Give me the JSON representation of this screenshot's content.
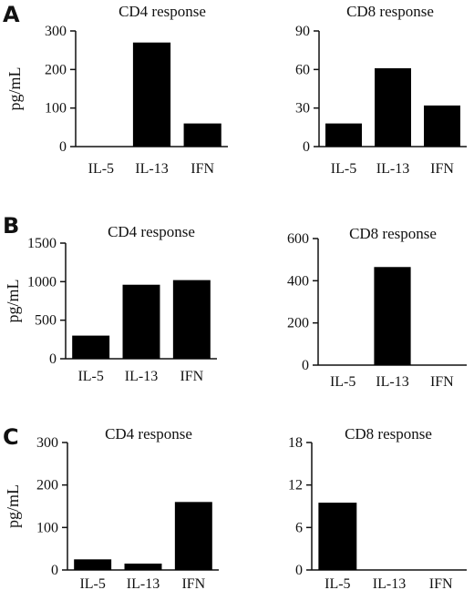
{
  "panels": [
    "A",
    "B",
    "C"
  ],
  "chart_data": [
    {
      "type": "bar",
      "panel": "A",
      "title": "CD4 response",
      "ylabel": "pg/mL",
      "categories": [
        "IL-5",
        "IL-13",
        "IFN"
      ],
      "values": [
        0,
        270,
        60
      ],
      "ylim": [
        0,
        300
      ],
      "yticks": [
        0,
        100,
        200,
        300
      ]
    },
    {
      "type": "bar",
      "panel": "A",
      "title": "CD8 response",
      "ylabel": "",
      "categories": [
        "IL-5",
        "IL-13",
        "IFN"
      ],
      "values": [
        18,
        61,
        32
      ],
      "ylim": [
        0,
        90
      ],
      "yticks": [
        0,
        30,
        60,
        90
      ]
    },
    {
      "type": "bar",
      "panel": "B",
      "title": "CD4 response",
      "ylabel": "pg/mL",
      "categories": [
        "IL-5",
        "IL-13",
        "IFN"
      ],
      "values": [
        300,
        960,
        1020
      ],
      "ylim": [
        0,
        1500
      ],
      "yticks": [
        0,
        500,
        1000,
        1500
      ]
    },
    {
      "type": "bar",
      "panel": "B",
      "title": "CD8 response",
      "ylabel": "",
      "categories": [
        "IL-5",
        "IL-13",
        "IFN"
      ],
      "values": [
        0,
        465,
        0
      ],
      "ylim": [
        0,
        600
      ],
      "yticks": [
        0,
        200,
        400,
        600
      ]
    },
    {
      "type": "bar",
      "panel": "C",
      "title": "CD4 response",
      "ylabel": "pg/mL",
      "categories": [
        "IL-5",
        "IL-13",
        "IFN"
      ],
      "values": [
        25,
        15,
        160
      ],
      "ylim": [
        0,
        300
      ],
      "yticks": [
        0,
        100,
        200,
        300
      ]
    },
    {
      "type": "bar",
      "panel": "C",
      "title": "CD8 response",
      "ylabel": "",
      "categories": [
        "IL-5",
        "IL-13",
        "IFN"
      ],
      "values": [
        9.5,
        0,
        0
      ],
      "ylim": [
        0,
        18
      ],
      "yticks": [
        0,
        6,
        12,
        18
      ]
    }
  ]
}
